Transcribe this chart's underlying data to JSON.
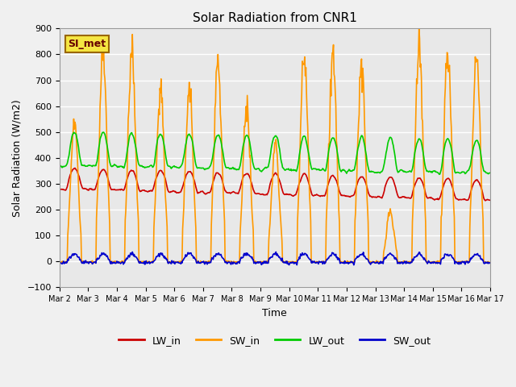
{
  "title": "Solar Radiation from CNR1",
  "xlabel": "Time",
  "ylabel": "Solar Radiation (W/m2)",
  "ylim": [
    -100,
    900
  ],
  "annotation": "SI_met",
  "bg_color": "#e8e8e8",
  "fig_color": "#f0f0f0",
  "grid_color": "white",
  "series": {
    "LW_in": {
      "color": "#cc0000",
      "lw": 1.2
    },
    "SW_in": {
      "color": "#ff9900",
      "lw": 1.2
    },
    "LW_out": {
      "color": "#00cc00",
      "lw": 1.2
    },
    "SW_out": {
      "color": "#0000cc",
      "lw": 1.2
    }
  },
  "xtick_labels": [
    "Mar 2",
    "Mar 3",
    "Mar 4",
    "Mar 5",
    "Mar 6",
    "Mar 7",
    "Mar 8",
    "Mar 9",
    "Mar 10",
    "Mar 11",
    "Mar 12",
    "Mar 13",
    "Mar 14",
    "Mar 15",
    "Mar 16",
    "Mar 17"
  ],
  "xtick_positions": [
    0,
    48,
    96,
    144,
    192,
    240,
    288,
    336,
    384,
    432,
    480,
    528,
    576,
    624,
    672,
    720
  ],
  "n_points": 720,
  "points_per_day": 48
}
